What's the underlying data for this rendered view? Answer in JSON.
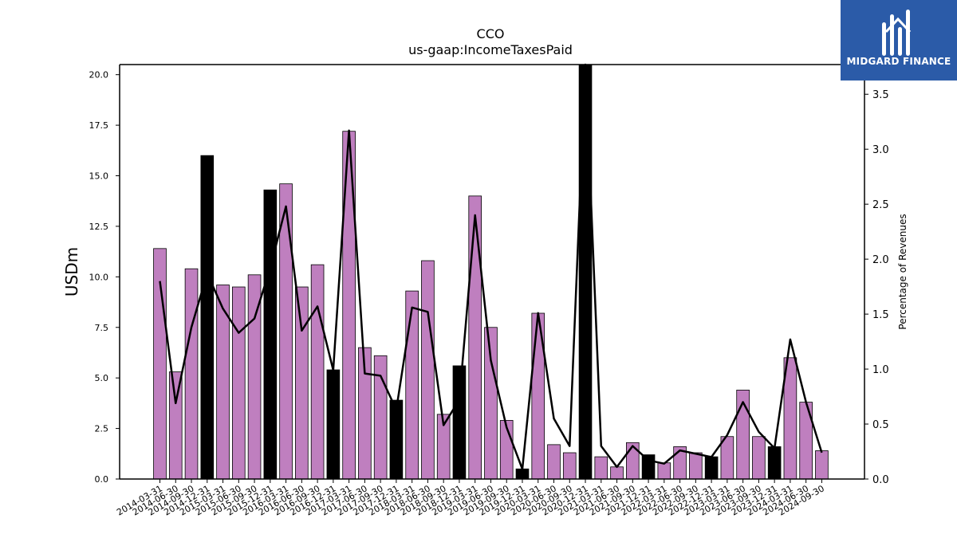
{
  "chart_data": {
    "type": "bar",
    "title": "CCO",
    "subtitle": "us-gaap:IncomeTaxesPaid",
    "ylabel": "USDm",
    "ylabel_right": "Percentage of Revenues",
    "ylim": [
      0,
      20.5
    ],
    "ylim_right": [
      0,
      3.77
    ],
    "yticks": [
      "0.0",
      "2.5",
      "5.0",
      "7.5",
      "10.0",
      "12.5",
      "15.0",
      "17.5",
      "20.0"
    ],
    "yticks_right": [
      "0.0",
      "0.5",
      "1.0",
      "1.5",
      "2.0",
      "2.5",
      "3.0",
      "3.5"
    ],
    "bar_color": "#bf7fbf",
    "highlight_color": "#000000",
    "line_color": "#000000",
    "grid": false,
    "legend": "none",
    "categories": [
      "2014-03-31",
      "2014-06-30",
      "2014-09-30",
      "2014-12-31",
      "2015-03-31",
      "2015-06-30",
      "2015-09-30",
      "2015-12-31",
      "2016-03-31",
      "2016-06-30",
      "2016-09-30",
      "2016-12-31",
      "2017-03-31",
      "2017-06-30",
      "2017-09-30",
      "2017-12-31",
      "2018-03-31",
      "2018-06-30",
      "2018-09-30",
      "2018-12-31",
      "2019-03-31",
      "2019-06-30",
      "2019-09-30",
      "2019-12-31",
      "2020-03-31",
      "2020-06-30",
      "2020-09-30",
      "2020-12-31",
      "2021-03-31",
      "2021-06-30",
      "2021-09-30",
      "2021-12-31",
      "2022-03-31",
      "2022-06-30",
      "2022-09-30",
      "2022-12-31",
      "2023-03-31",
      "2023-06-30",
      "2023-09-30",
      "2023-12-31",
      "2024-03-31",
      "2024-06-30",
      "2024-09-30"
    ],
    "series": [
      {
        "values": [
          11.4,
          5.3,
          10.4,
          16.0,
          9.6,
          9.5,
          10.1,
          14.3,
          14.6,
          9.5,
          10.6,
          5.4,
          17.2,
          6.5,
          6.1,
          3.9,
          9.3,
          10.8,
          3.2,
          5.6,
          14.0,
          7.5,
          2.9,
          0.5,
          8.2,
          1.7,
          1.3,
          20.5,
          1.1,
          0.6,
          1.8,
          1.2,
          0.8,
          1.6,
          1.3,
          1.1,
          2.1,
          4.4,
          2.1,
          1.6,
          6.0,
          3.8,
          1.4
        ],
        "highlight": [
          false,
          false,
          false,
          true,
          false,
          false,
          false,
          true,
          false,
          false,
          false,
          true,
          false,
          false,
          false,
          true,
          false,
          false,
          false,
          true,
          false,
          false,
          false,
          true,
          false,
          false,
          false,
          true,
          false,
          false,
          false,
          true,
          false,
          false,
          false,
          true,
          false,
          false,
          false,
          true,
          false,
          false,
          false
        ]
      },
      {
        "axis": "right",
        "values": [
          1.8,
          0.69,
          1.38,
          1.87,
          1.55,
          1.33,
          1.46,
          1.92,
          2.48,
          1.35,
          1.57,
          0.99,
          3.17,
          0.96,
          0.94,
          0.63,
          1.56,
          1.52,
          0.49,
          0.72,
          2.4,
          1.08,
          0.47,
          0.09,
          1.51,
          0.55,
          0.3,
          3.77,
          0.3,
          0.11,
          0.3,
          0.17,
          0.14,
          0.26,
          0.23,
          0.2,
          0.4,
          0.7,
          0.43,
          0.28,
          1.27,
          0.7,
          0.24
        ]
      }
    ]
  },
  "logo": {
    "text": "MIDGARD FINANCE",
    "background": "#2b5ba8"
  }
}
